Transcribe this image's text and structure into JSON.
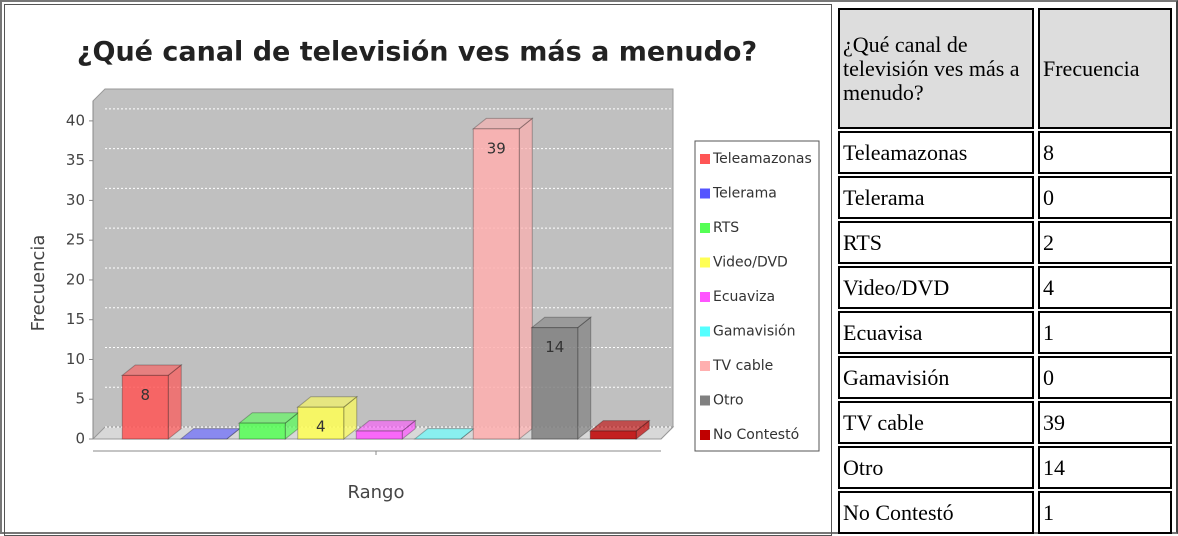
{
  "chart_data": {
    "type": "bar3d",
    "title": "¿Qué canal de televisión ves más a menudo?",
    "ylabel": "Frecuencia",
    "xlabel": "Rango",
    "categories": [
      "Teleamazonas",
      "Telerama",
      "RTS",
      "Video/DVD",
      "Ecuaviza",
      "Gamavisión",
      "TV cable",
      "Otro",
      "No Contestó"
    ],
    "values": [
      8,
      0,
      2,
      4,
      1,
      0,
      39,
      14,
      1
    ],
    "value_labels": [
      "8",
      null,
      null,
      "4",
      null,
      null,
      "39",
      "14",
      null
    ],
    "colors": [
      "#ff5555",
      "#5555ff",
      "#55ff55",
      "#ffff55",
      "#ff55ff",
      "#55ffff",
      "#ffafaf",
      "#808080",
      "#c00000"
    ],
    "ylim": [
      0,
      42.5
    ],
    "yticks": [
      0,
      5,
      10,
      15,
      20,
      25,
      30,
      35,
      40
    ],
    "grid": true,
    "legend": "right"
  },
  "table": {
    "header": [
      "¿Qué canal de televisión ves más a menudo?",
      "Frecuencia"
    ],
    "rows": [
      [
        "Teleamazonas",
        "8"
      ],
      [
        "Telerama",
        "0"
      ],
      [
        "RTS",
        "2"
      ],
      [
        "Video/DVD",
        "4"
      ],
      [
        "Ecuavisa",
        "1"
      ],
      [
        "Gamavisión",
        "0"
      ],
      [
        "TV cable",
        "39"
      ],
      [
        "Otro",
        "14"
      ],
      [
        "No Contestó",
        "1"
      ]
    ]
  }
}
